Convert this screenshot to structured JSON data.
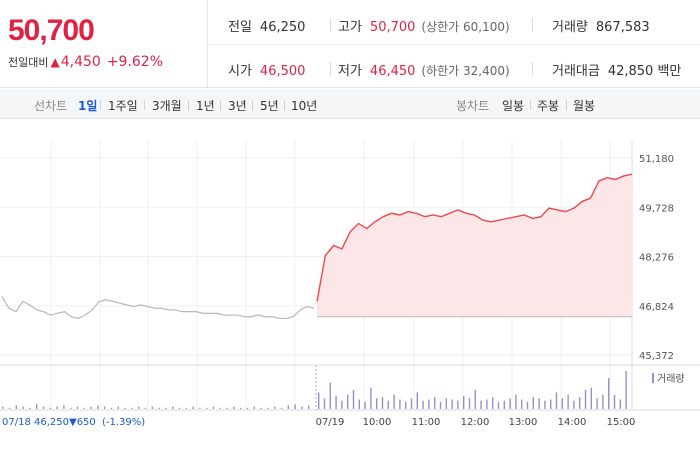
{
  "summary": {
    "current_price": "50,700",
    "change_label": "전일대비",
    "change_arrow": "▲",
    "change_value": "4,450",
    "change_pct": "+9.62%",
    "prev_label": "전일",
    "prev_value": "46,250",
    "high_label": "고가",
    "high_value": "50,700",
    "upper_limit": "(상한가 60,100)",
    "volume_label": "거래량",
    "volume_value": "867,583",
    "open_label": "시가",
    "open_value": "46,500",
    "low_label": "저가",
    "low_value": "46,450",
    "lower_limit": "(하한가 32,400)",
    "amount_label": "거래대금",
    "amount_value": "42,850 백만"
  },
  "toolbar": {
    "line_chart_label": "선차트",
    "line_periods": [
      "1일",
      "1주일",
      "3개월",
      "1년",
      "3년",
      "5년",
      "10년"
    ],
    "active_period": "1일",
    "candle_chart_label": "봉차트",
    "candle_periods": [
      "일봉",
      "주봉",
      "월봉"
    ]
  },
  "chart_data": {
    "type": "line",
    "y_ticks": [
      "51,180",
      "49,728",
      "48,276",
      "46,824",
      "45,372"
    ],
    "ylim": [
      45372,
      51180
    ],
    "x_tick_labels": [
      "07/18",
      "07/19",
      "10:00",
      "11:00",
      "12:00",
      "13:00",
      "14:00",
      "15:00"
    ],
    "prev_day_label": "07/18",
    "prev_day_close": "46,250",
    "prev_day_change": "▼650",
    "prev_day_change_pct": "(-1.39%)",
    "volume_legend": "거래량",
    "baseline": 46500,
    "colors": {
      "up_line": "#f0474b",
      "up_fill": "#fde6e7",
      "prev_line": "#b5b8bd",
      "volume": "#9b8fc9",
      "down": "#1a5bd6",
      "grid": "#eef0f2"
    },
    "series": [
      {
        "values": [
          47100,
          46750,
          46650,
          46950,
          46850,
          46700,
          46650,
          46550,
          46600,
          46650,
          46500,
          46450,
          46550,
          46700,
          46950,
          47000,
          46950,
          46900,
          46850,
          46800,
          46850,
          46800,
          46750,
          46750,
          46700,
          46700,
          46650,
          46650,
          46650,
          46600,
          46600,
          46600,
          46550,
          46550,
          46550,
          46500,
          46500,
          46550,
          46500,
          46500,
          46450,
          46450,
          46500,
          46700,
          46800,
          46750
        ]
      },
      {
        "values": [
          46950,
          48300,
          48600,
          48500,
          49000,
          49250,
          49100,
          49300,
          49450,
          49550,
          49500,
          49600,
          49550,
          49450,
          49500,
          49450,
          49550,
          49650,
          49550,
          49500,
          49350,
          49300,
          49350,
          49400,
          49450,
          49500,
          49400,
          49450,
          49700,
          49650,
          49600,
          49700,
          49900,
          50000,
          50500,
          50600,
          50550,
          50650,
          50700
        ]
      }
    ],
    "volume": [
      2,
      1,
      3,
      2,
      1,
      4,
      2,
      1,
      2,
      3,
      1,
      2,
      1,
      2,
      3,
      2,
      1,
      2,
      1,
      1,
      2,
      1,
      2,
      1,
      1,
      2,
      1,
      1,
      2,
      1,
      1,
      2,
      1,
      1,
      2,
      1,
      1,
      2,
      1,
      1,
      2,
      1,
      3,
      4,
      2,
      3,
      14,
      9,
      22,
      11,
      7,
      12,
      16,
      8,
      6,
      18,
      9,
      10,
      7,
      12,
      8,
      6,
      9,
      14,
      7,
      8,
      10,
      6,
      9,
      8,
      7,
      11,
      9,
      16,
      7,
      8,
      10,
      6,
      7,
      9,
      12,
      8,
      6,
      10,
      9,
      7,
      8,
      14,
      9,
      12,
      7,
      10,
      16,
      18,
      9,
      12,
      26,
      12,
      8,
      32
    ]
  }
}
